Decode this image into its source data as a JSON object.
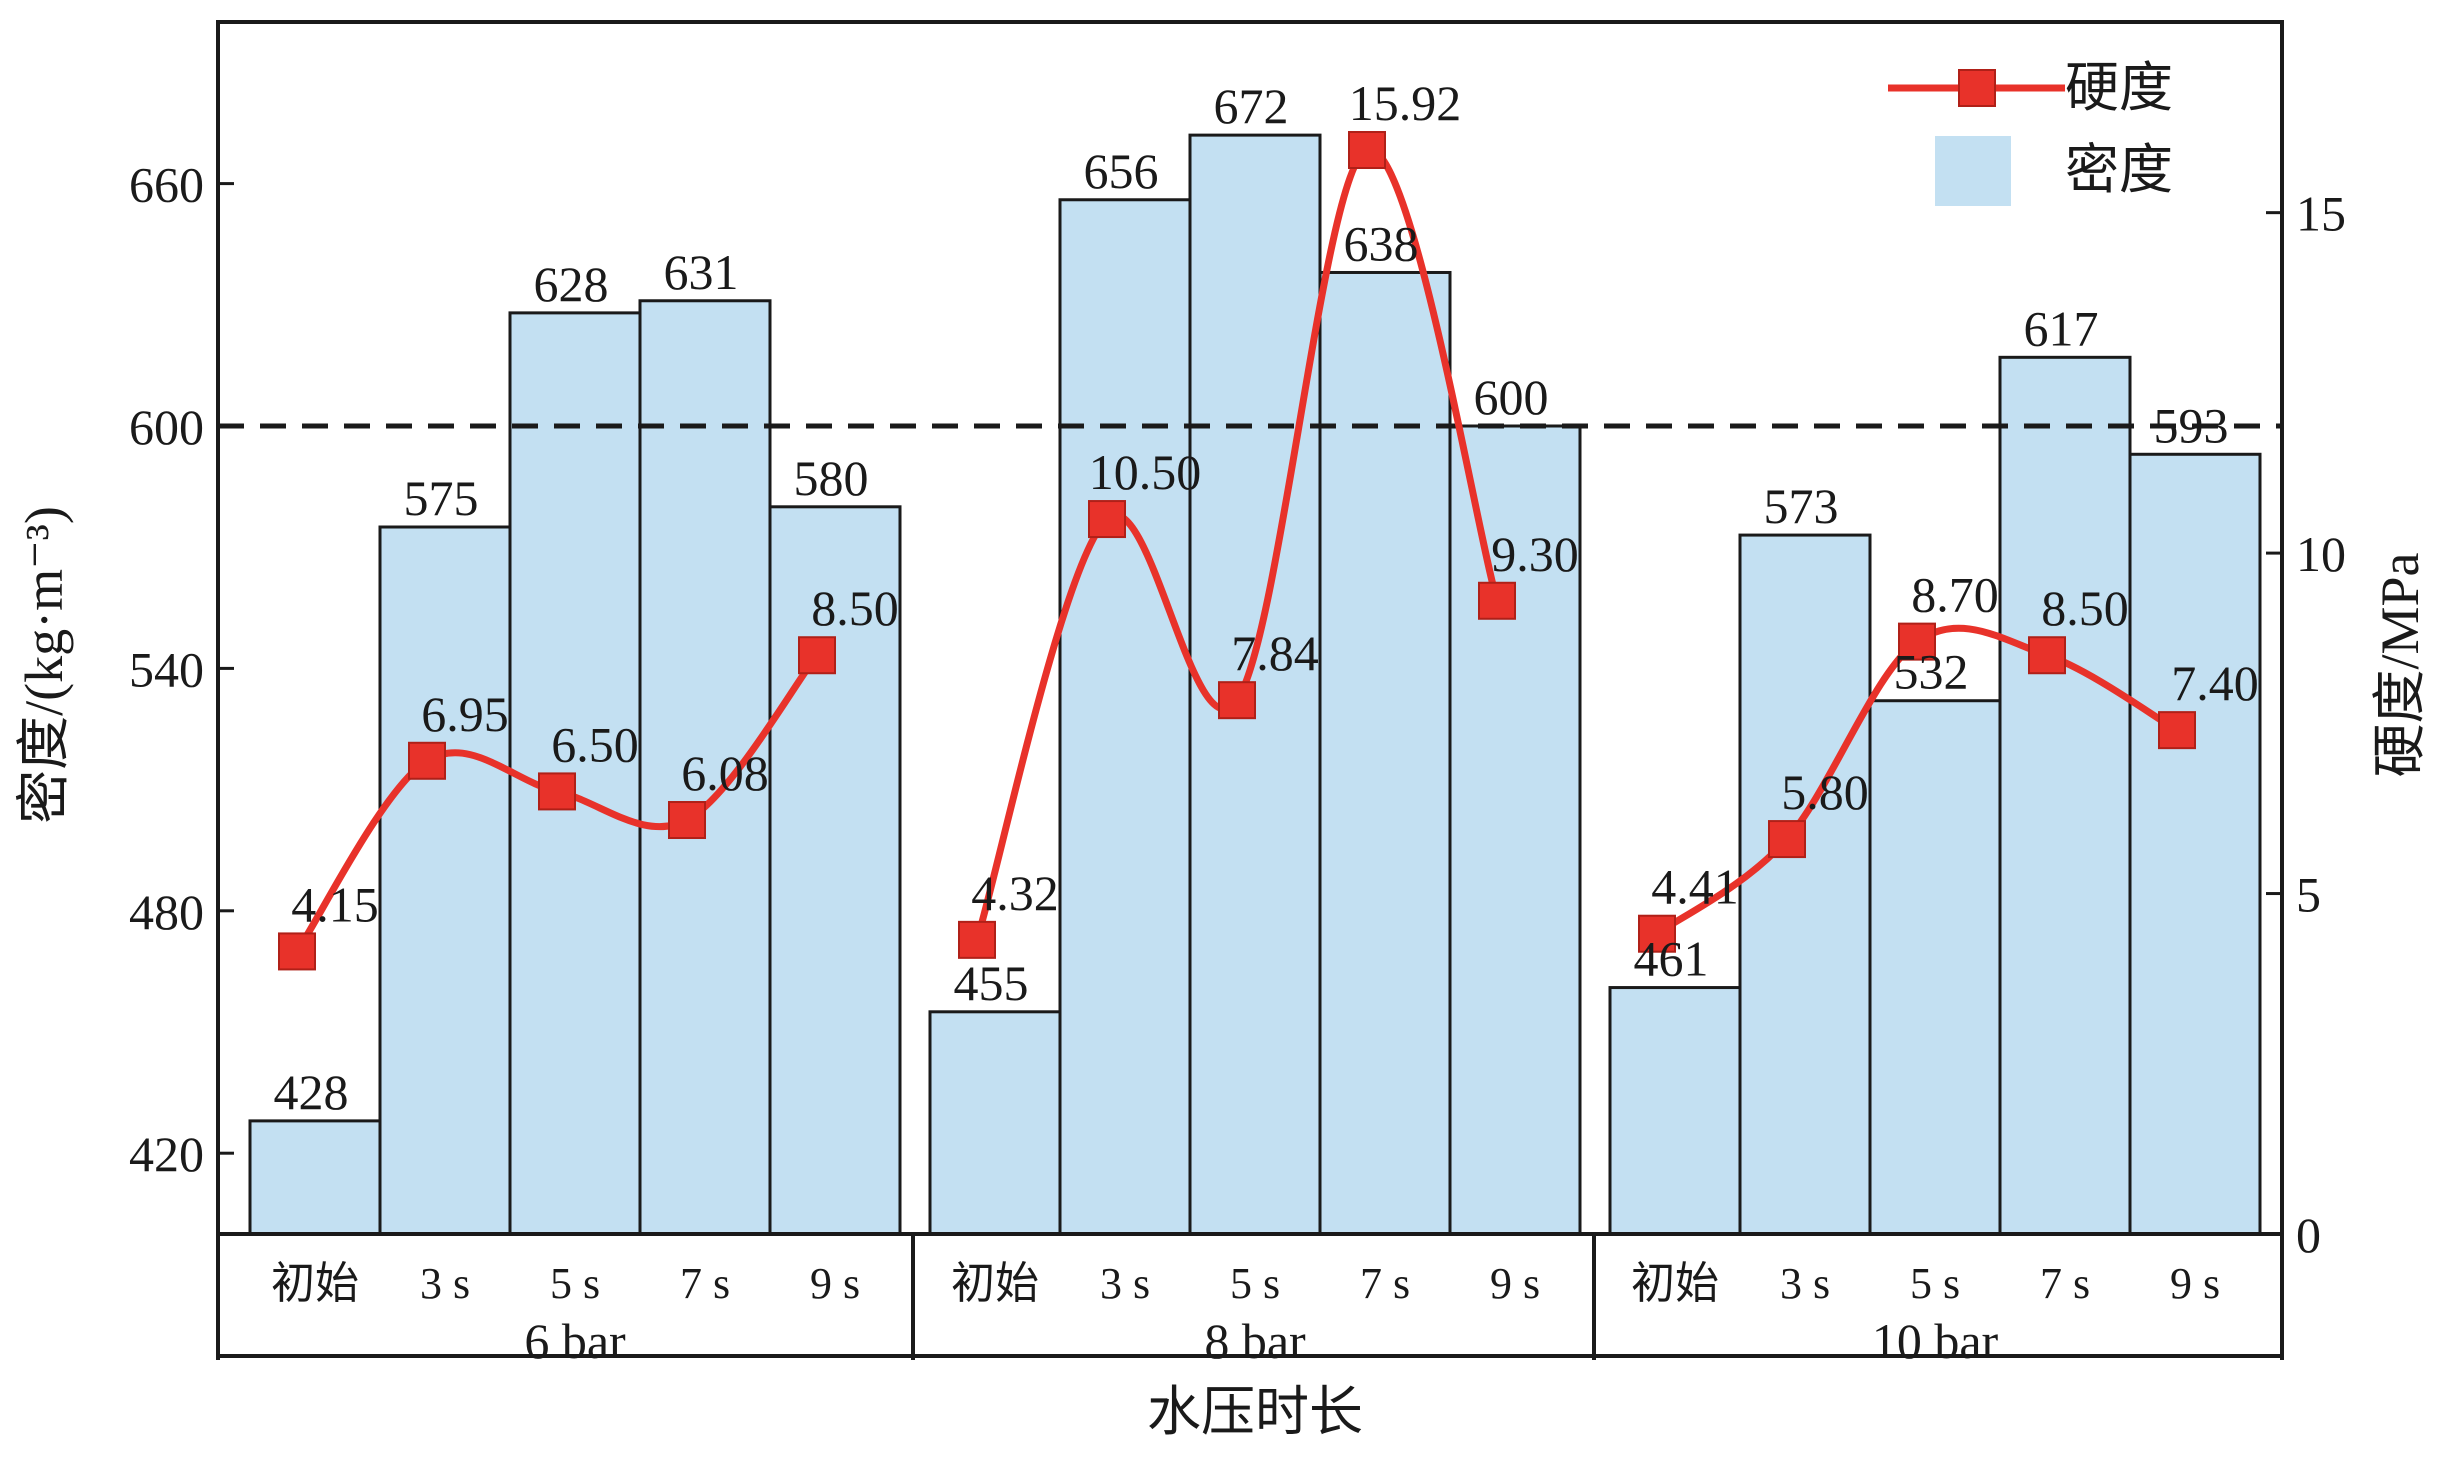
{
  "chart_data": {
    "type": "bar",
    "xlabel": "水压时长",
    "ylabel_left": "密度/(kg·m⁻³)",
    "ylabel_right": "硬度/MPa",
    "groups": [
      {
        "name": "6 bar",
        "categories": [
          "初始",
          "3 s",
          "5 s",
          "7 s",
          "9 s"
        ]
      },
      {
        "name": "8 bar",
        "categories": [
          "初始",
          "3 s",
          "5 s",
          "7 s",
          "9 s"
        ]
      },
      {
        "name": "10 bar",
        "categories": [
          "初始",
          "3 s",
          "5 s",
          "7 s",
          "9 s"
        ]
      }
    ],
    "series": [
      {
        "name": "密度",
        "type": "bar",
        "axis": "left",
        "values": [
          428,
          575,
          628,
          631,
          580,
          455,
          656,
          672,
          638,
          600,
          461,
          573,
          532,
          617,
          593
        ],
        "labels": [
          "428",
          "575",
          "628",
          "631",
          "580",
          "455",
          "656",
          "672",
          "638",
          "600",
          "461",
          "573",
          "532",
          "617",
          "593"
        ]
      },
      {
        "name": "硬度",
        "type": "line",
        "axis": "right",
        "values": [
          4.15,
          6.95,
          6.5,
          6.08,
          8.5,
          4.32,
          10.5,
          7.84,
          15.92,
          9.3,
          4.41,
          5.8,
          8.7,
          8.5,
          7.4
        ],
        "labels": [
          "4.15",
          "6.95",
          "6.50",
          "6.08",
          "8.50",
          "4.32",
          "10.50",
          "7.84",
          "15.92",
          "9.30",
          "4.41",
          "5.80",
          "8.70",
          "8.50",
          "7.40"
        ]
      }
    ],
    "y_left": {
      "min": 400,
      "max": 700,
      "ticks": [
        "420",
        "480",
        "540",
        "600",
        "660"
      ]
    },
    "y_right": {
      "min": 0,
      "max": 17.8,
      "ticks": [
        "0",
        "5",
        "10",
        "15"
      ]
    },
    "reference_line": 600,
    "legend_position": "top-right",
    "colors": {
      "bar": "#c3e0f2",
      "line": "#e8322a",
      "marker": "#e8322a"
    }
  }
}
